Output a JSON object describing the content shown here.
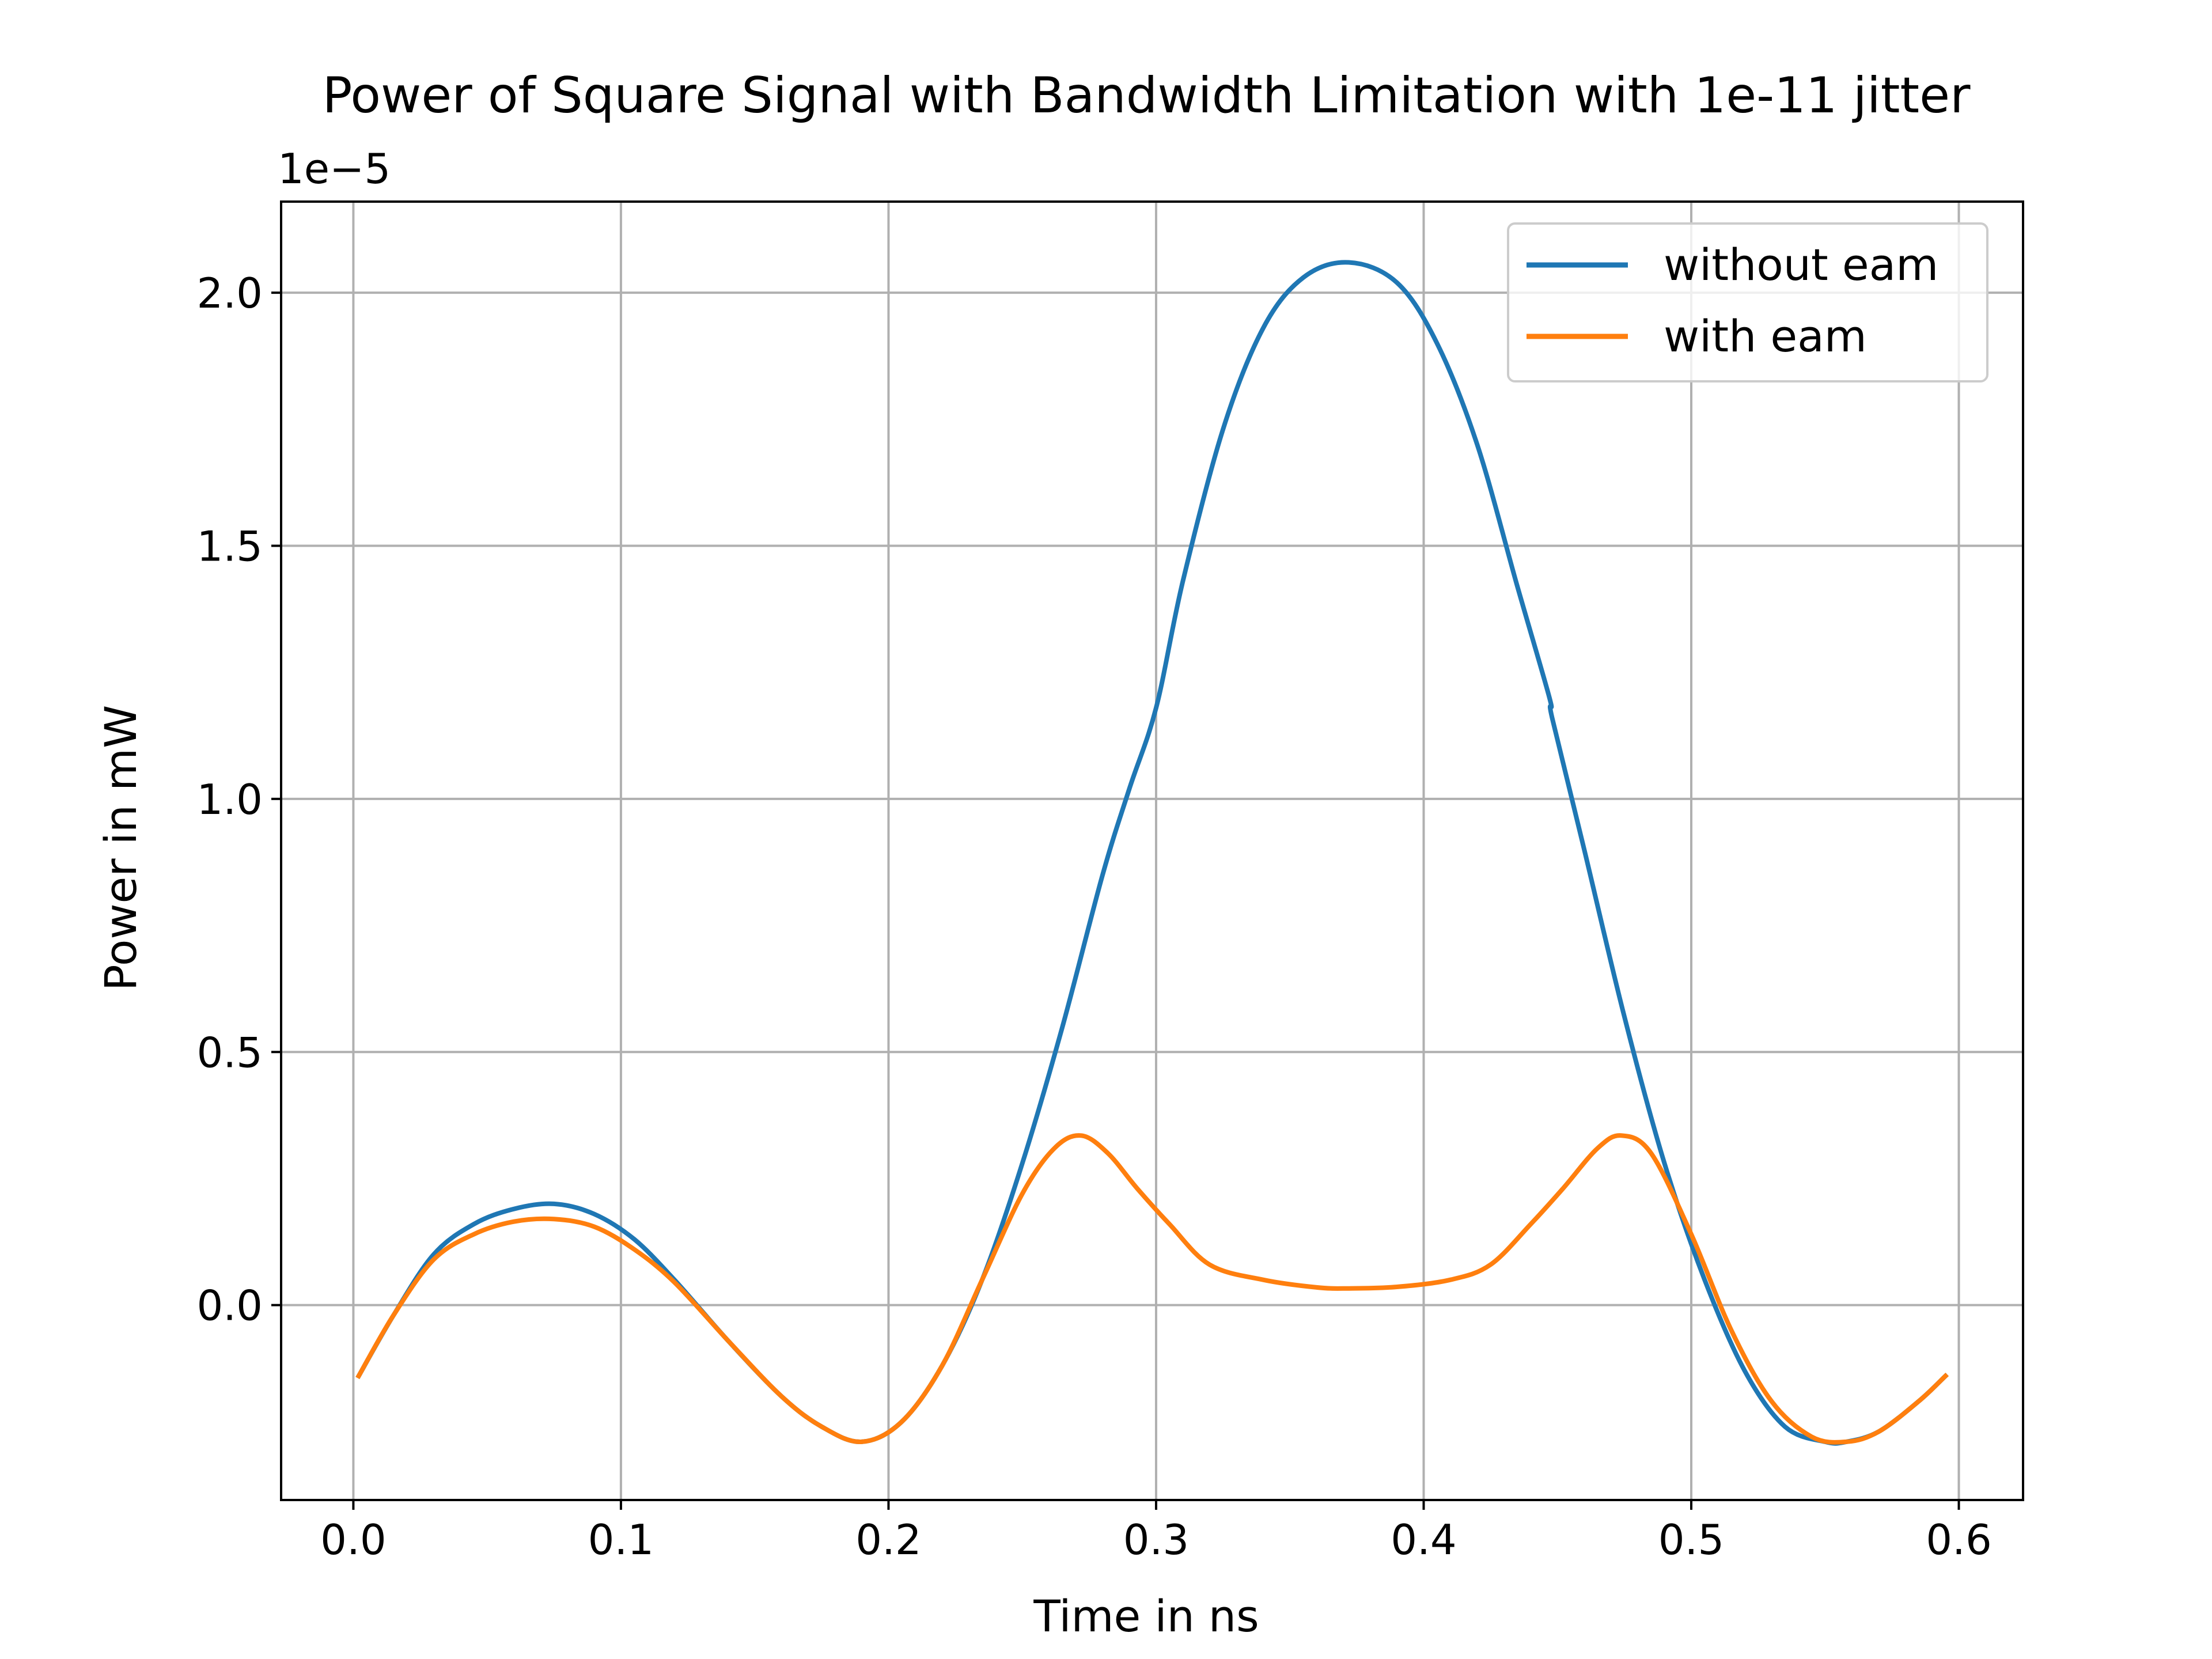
{
  "chart_data": {
    "type": "line",
    "title": "Power of Square Signal with Bandwidth Limitation with 1e-11 jitter",
    "xlabel": "Time in ns",
    "ylabel": "Power in mW",
    "y_offset_label": "1e−5",
    "y_multiplier": 1e-05,
    "xlim": [
      -0.027,
      0.624
    ],
    "ylim": [
      -0.385,
      2.18
    ],
    "xticks": [
      0.0,
      0.1,
      0.2,
      0.3,
      0.4,
      0.5,
      0.6
    ],
    "xtick_labels": [
      "0.0",
      "0.1",
      "0.2",
      "0.3",
      "0.4",
      "0.5",
      "0.6"
    ],
    "yticks": [
      0.0,
      0.5,
      1.0,
      1.5,
      2.0
    ],
    "ytick_labels": [
      "0.0",
      "0.5",
      "1.0",
      "1.5",
      "2.0"
    ],
    "grid": true,
    "legend_position": "top-right",
    "series": [
      {
        "name": "without eam",
        "color": "#1f77b4",
        "x": [
          0.002,
          0.015,
          0.03,
          0.045,
          0.06,
          0.075,
          0.09,
          0.105,
          0.12,
          0.14,
          0.16,
          0.175,
          0.19,
          0.205,
          0.22,
          0.235,
          0.25,
          0.265,
          0.28,
          0.29,
          0.3,
          0.31,
          0.325,
          0.34,
          0.355,
          0.372,
          0.39,
          0.405,
          0.42,
          0.435,
          0.447,
          0.448,
          0.46,
          0.475,
          0.49,
          0.505,
          0.52,
          0.535,
          0.55,
          0.558,
          0.57,
          0.585,
          0.595
        ],
        "y": [
          -0.14,
          -0.02,
          0.1,
          0.16,
          0.19,
          0.2,
          0.18,
          0.13,
          0.05,
          -0.07,
          -0.18,
          -0.24,
          -0.27,
          -0.23,
          -0.12,
          0.05,
          0.28,
          0.55,
          0.85,
          1.02,
          1.18,
          1.43,
          1.73,
          1.93,
          2.03,
          2.06,
          2.02,
          1.9,
          1.7,
          1.42,
          1.2,
          1.16,
          0.9,
          0.57,
          0.28,
          0.05,
          -0.13,
          -0.24,
          -0.27,
          -0.27,
          -0.25,
          -0.19,
          -0.14
        ]
      },
      {
        "name": "with eam",
        "color": "#ff7f0e",
        "x": [
          0.002,
          0.015,
          0.03,
          0.045,
          0.06,
          0.075,
          0.09,
          0.105,
          0.12,
          0.14,
          0.16,
          0.175,
          0.19,
          0.205,
          0.22,
          0.235,
          0.25,
          0.262,
          0.272,
          0.282,
          0.293,
          0.305,
          0.32,
          0.34,
          0.36,
          0.372,
          0.39,
          0.41,
          0.425,
          0.44,
          0.452,
          0.465,
          0.474,
          0.485,
          0.5,
          0.515,
          0.53,
          0.545,
          0.558,
          0.57,
          0.585,
          0.595
        ],
        "y": [
          -0.14,
          -0.02,
          0.09,
          0.14,
          0.165,
          0.17,
          0.155,
          0.11,
          0.045,
          -0.07,
          -0.18,
          -0.24,
          -0.27,
          -0.23,
          -0.12,
          0.05,
          0.22,
          0.31,
          0.335,
          0.3,
          0.23,
          0.16,
          0.08,
          0.05,
          0.035,
          0.033,
          0.036,
          0.05,
          0.08,
          0.16,
          0.23,
          0.31,
          0.335,
          0.3,
          0.14,
          -0.05,
          -0.19,
          -0.26,
          -0.27,
          -0.25,
          -0.19,
          -0.14
        ]
      }
    ]
  }
}
